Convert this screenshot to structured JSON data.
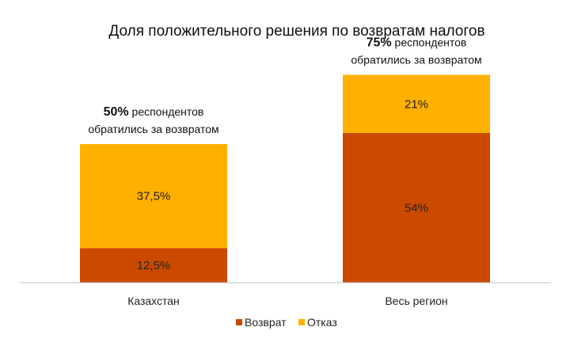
{
  "chart_data": {
    "type": "bar",
    "stacked": true,
    "title": "Доля положительного решения по возвратам налогов",
    "categories": [
      "Казахстан",
      "Весь регион"
    ],
    "series": [
      {
        "name": "Возврат",
        "color": "#cc4a00",
        "values": [
          12.5,
          54
        ],
        "labels": [
          "12,5%",
          "54%"
        ]
      },
      {
        "name": "Отказ",
        "color": "#ffb000",
        "values": [
          37.5,
          21
        ],
        "labels": [
          "37,5%",
          "21%"
        ]
      }
    ],
    "totals": [
      50,
      75
    ],
    "annotations": [
      {
        "pct": "50%",
        "line1": " респондентов",
        "line2": "обратились за возвратом"
      },
      {
        "pct": "75%",
        "line1": " респондентов",
        "line2": "обратились за возвратом"
      }
    ],
    "ylim": [
      0,
      75
    ],
    "grid": false,
    "legend_position": "bottom"
  }
}
